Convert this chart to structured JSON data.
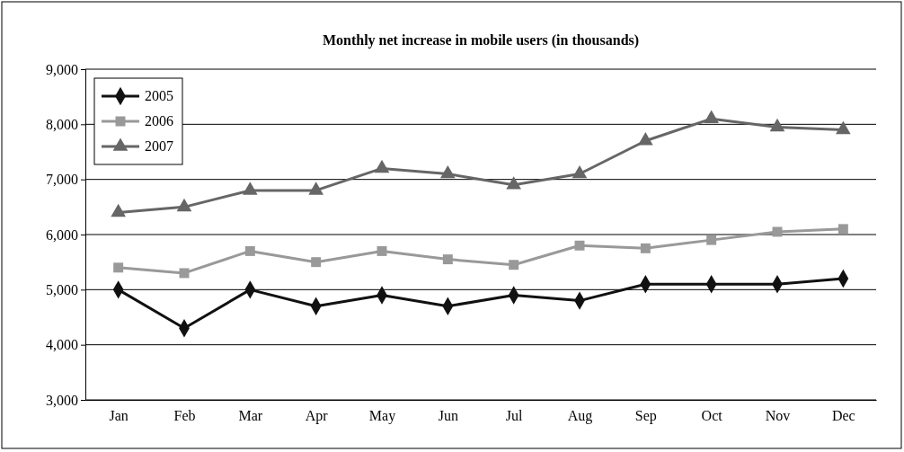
{
  "chart_data": {
    "type": "line",
    "title": "Monthly net increase in mobile users (in thousands)",
    "categories": [
      "Jan",
      "Feb",
      "Mar",
      "Apr",
      "May",
      "Jun",
      "Jul",
      "Aug",
      "Sep",
      "Oct",
      "Nov",
      "Dec"
    ],
    "series": [
      {
        "name": "2005",
        "color": "#111111",
        "marker": "diamond",
        "values": [
          5000,
          4300,
          5000,
          4700,
          4900,
          4700,
          4900,
          4800,
          5100,
          5100,
          5100,
          5200
        ]
      },
      {
        "name": "2006",
        "color": "#999999",
        "marker": "square",
        "values": [
          5400,
          5300,
          5700,
          5500,
          5700,
          5550,
          5450,
          5800,
          5750,
          5900,
          6050,
          6100
        ]
      },
      {
        "name": "2007",
        "color": "#666666",
        "marker": "triangle",
        "values": [
          6400,
          6500,
          6800,
          6800,
          7200,
          7100,
          6900,
          7100,
          7700,
          8100,
          7950,
          7900
        ]
      }
    ],
    "ylim": [
      3000,
      9000
    ],
    "yticks": [
      {
        "value": 3000,
        "label": "3,000"
      },
      {
        "value": 4000,
        "label": "4,000"
      },
      {
        "value": 5000,
        "label": "5,000"
      },
      {
        "value": 6000,
        "label": "6,000"
      },
      {
        "value": 7000,
        "label": "7,000"
      },
      {
        "value": 8000,
        "label": "8,000"
      },
      {
        "value": 9000,
        "label": "9,000"
      }
    ],
    "grid": "y",
    "legend": "top left",
    "line_style": "solid"
  }
}
